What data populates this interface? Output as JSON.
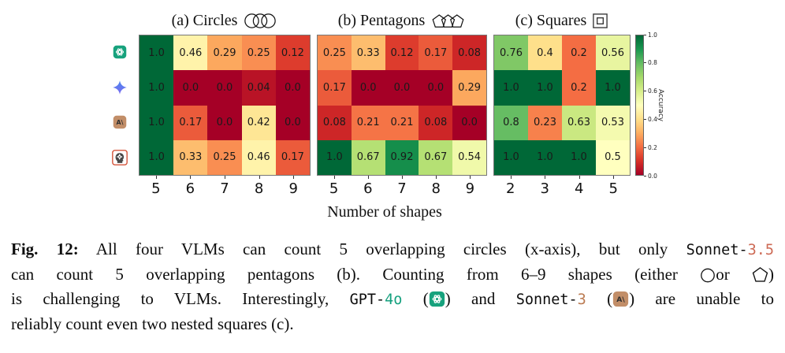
{
  "figure": {
    "panels": [
      {
        "label": "(a) Circles",
        "glyph": "circles3",
        "x_ticks": [
          "5",
          "6",
          "7",
          "8",
          "9"
        ]
      },
      {
        "label": "(b) Pentagons",
        "glyph": "pentagons3",
        "x_ticks": [
          "5",
          "6",
          "7",
          "8",
          "9"
        ]
      },
      {
        "label": "(c) Squares",
        "glyph": "nested-squares",
        "x_ticks": [
          "2",
          "3",
          "4",
          "5"
        ]
      }
    ],
    "row_icons": [
      {
        "name": "openai-gpt-4o-icon",
        "kind": "openai"
      },
      {
        "name": "gemini-star-icon",
        "kind": "gemini"
      },
      {
        "name": "anthropic-sonnet-icon",
        "kind": "anthropic"
      },
      {
        "name": "head-gear-sonnet35-icon",
        "kind": "head"
      }
    ],
    "xlabel": "Number of shapes",
    "colorbar": {
      "label": "Accuracy",
      "ticks": [
        "1.0",
        "0.8",
        "0.6",
        "0.4",
        "0.2",
        "0.0"
      ]
    }
  },
  "chart_data": [
    {
      "type": "heatmap",
      "title": "(a) Circles",
      "x": [
        5,
        6,
        7,
        8,
        9
      ],
      "y": [
        "GPT-4o",
        "Gemini (star icon)",
        "Sonnet-3",
        "Sonnet-3.5"
      ],
      "values": [
        [
          1.0,
          0.46,
          0.29,
          0.25,
          0.12
        ],
        [
          1.0,
          0.0,
          0.0,
          0.04,
          0.0
        ],
        [
          1.0,
          0.17,
          0.0,
          0.42,
          0.0
        ],
        [
          1.0,
          0.33,
          0.25,
          0.46,
          0.17
        ]
      ],
      "xlabel": "Number of shapes",
      "colormap": "RdYlGn",
      "vmin": 0.0,
      "vmax": 1.0,
      "colorbar_label": "Accuracy"
    },
    {
      "type": "heatmap",
      "title": "(b) Pentagons",
      "x": [
        5,
        6,
        7,
        8,
        9
      ],
      "y": [
        "GPT-4o",
        "Gemini (star icon)",
        "Sonnet-3",
        "Sonnet-3.5"
      ],
      "values": [
        [
          0.25,
          0.33,
          0.12,
          0.17,
          0.08
        ],
        [
          0.17,
          0.0,
          0.0,
          0.0,
          0.29
        ],
        [
          0.08,
          0.21,
          0.21,
          0.08,
          0.0
        ],
        [
          1.0,
          0.67,
          0.92,
          0.67,
          0.54
        ]
      ],
      "xlabel": "Number of shapes",
      "colormap": "RdYlGn",
      "vmin": 0.0,
      "vmax": 1.0,
      "colorbar_label": "Accuracy"
    },
    {
      "type": "heatmap",
      "title": "(c) Squares",
      "x": [
        2,
        3,
        4,
        5
      ],
      "y": [
        "GPT-4o",
        "Gemini (star icon)",
        "Sonnet-3",
        "Sonnet-3.5"
      ],
      "values": [
        [
          0.76,
          0.4,
          0.2,
          0.56
        ],
        [
          1.0,
          1.0,
          0.2,
          1.0
        ],
        [
          0.8,
          0.23,
          0.63,
          0.53
        ],
        [
          1.0,
          1.0,
          1.0,
          0.5
        ]
      ],
      "xlabel": "Number of shapes",
      "colormap": "RdYlGn",
      "vmin": 0.0,
      "vmax": 1.0,
      "colorbar_label": "Accuracy"
    }
  ],
  "caption": {
    "lines": [
      [
        {
          "t": "bold",
          "text": "Fig. 12:"
        },
        {
          "t": "text",
          "text": " All four VLMs can count 5 overlapping circles (x-axis), but only "
        },
        {
          "t": "mono",
          "text": "Sonnet-"
        },
        {
          "t": "mono",
          "text": "3.5",
          "color": "#cd6a55"
        }
      ],
      [
        {
          "t": "text",
          "text": "can count 5 overlapping pentagons (b). Counting from 6–9 shapes (either "
        },
        {
          "t": "shape",
          "name": "circle"
        },
        {
          "t": "text",
          "text": "or "
        },
        {
          "t": "shape",
          "name": "pentagon"
        },
        {
          "t": "text",
          "text": ")"
        }
      ],
      [
        {
          "t": "text",
          "text": "is challenging to VLMs. Interestingly, "
        },
        {
          "t": "mono",
          "text": "GPT-"
        },
        {
          "t": "mono",
          "text": "4o",
          "color": "#14a07e"
        },
        {
          "t": "text",
          "text": " ("
        },
        {
          "t": "icon",
          "name": "openai"
        },
        {
          "t": "text",
          "text": ") and "
        },
        {
          "t": "mono",
          "text": "Sonnet-"
        },
        {
          "t": "mono",
          "text": "3",
          "color": "#bb7b52"
        },
        {
          "t": "text",
          "text": " ("
        },
        {
          "t": "icon",
          "name": "anthropic"
        },
        {
          "t": "text",
          "text": ") are unable to"
        }
      ],
      [
        {
          "t": "text",
          "text": "reliably count even two nested squares (c)."
        }
      ]
    ]
  },
  "colors": {
    "openai_green": "#17a27d",
    "anthropic_tan": "#c28e68",
    "gemini_blue": "#4a86ee",
    "head_icon_border": "#d4563c",
    "cmap_low": "#a50026",
    "cmap_mid": "#ffffbf",
    "cmap_high": "#006837"
  }
}
